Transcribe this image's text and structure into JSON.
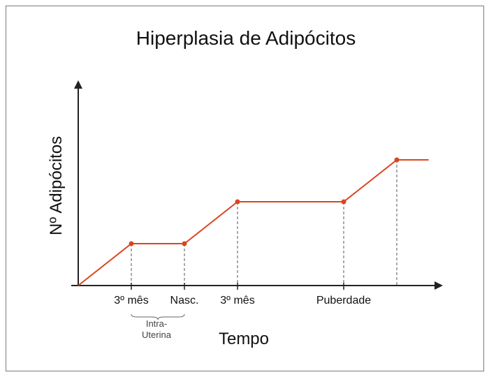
{
  "chart_data": {
    "type": "line",
    "title": "Hiperplasia de Adipócitos",
    "xlabel": "Tempo",
    "ylabel": "Nº Adipócitos",
    "x_ticks": [
      "3º mês",
      "Nasc.",
      "3º mês",
      "Puberdade"
    ],
    "annotation": {
      "line1": "Intra-",
      "line2": "Uterina"
    },
    "series": [
      {
        "points": [
          {
            "x": 0,
            "y": 0
          },
          {
            "x": 1,
            "y": 1
          },
          {
            "x": 2,
            "y": 1
          },
          {
            "x": 3,
            "y": 2
          },
          {
            "x": 5,
            "y": 2
          },
          {
            "x": 6,
            "y": 3
          },
          {
            "x": 6.6,
            "y": 3
          }
        ],
        "markers": [
          1,
          2,
          3,
          4,
          5
        ]
      }
    ],
    "line_color": "#d9461f",
    "axis_color": "#222222",
    "grid": false
  }
}
